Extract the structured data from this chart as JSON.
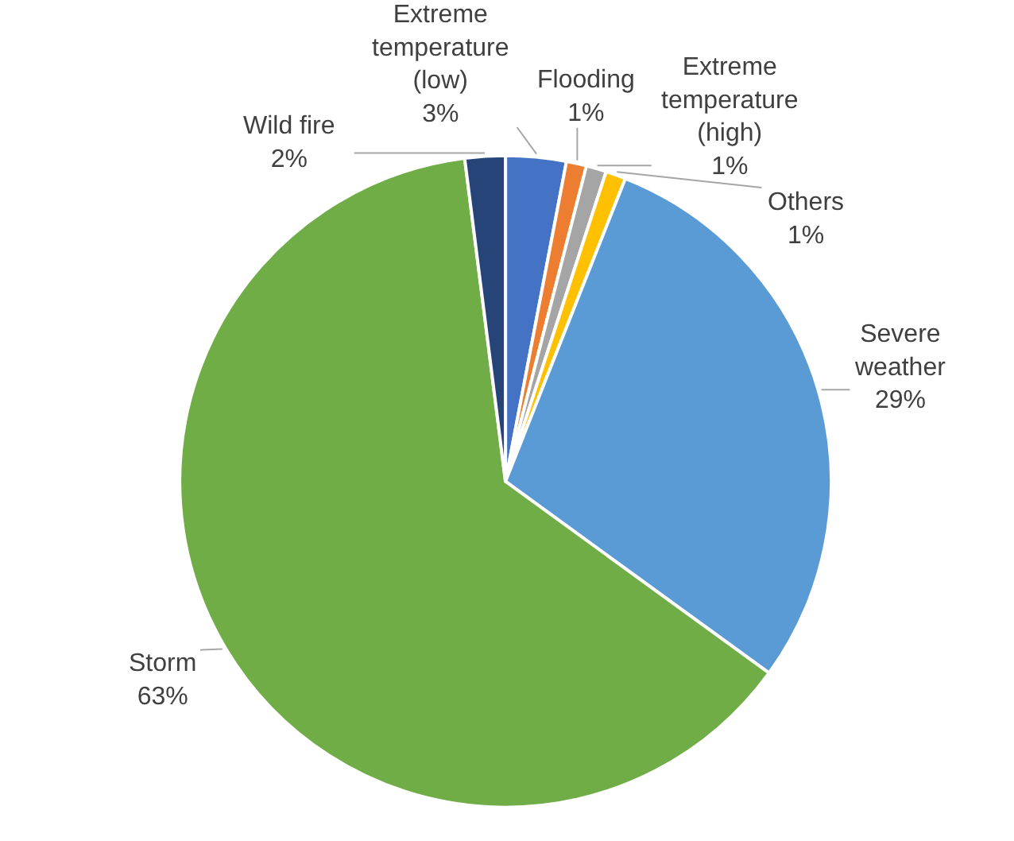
{
  "chart_data": {
    "type": "pie",
    "categories": [
      "Extreme temperature (low)",
      "Flooding",
      "Extreme temperature (high)",
      "Others",
      "Severe weather",
      "Storm",
      "Wild fire"
    ],
    "values": [
      3,
      1,
      1,
      1,
      29,
      63,
      2
    ],
    "value_labels": [
      "3%",
      "1%",
      "1%",
      "1%",
      "29%",
      "63%",
      "2%"
    ],
    "colors": [
      "#4472c4",
      "#ed7d31",
      "#a5a5a5",
      "#ffc000",
      "#5b9bd5",
      "#70ad47",
      "#264478"
    ],
    "legend": false
  }
}
